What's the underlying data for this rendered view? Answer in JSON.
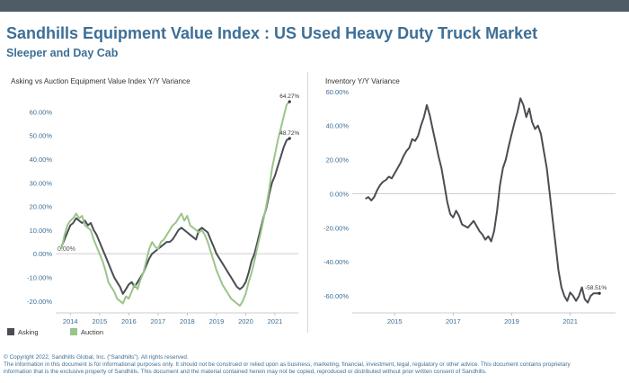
{
  "header": {
    "title": "Sandhills Equipment Value Index : US Used Heavy Duty Truck Market",
    "subtitle": "Sleeper and Day Cab"
  },
  "colors": {
    "brand_blue": "#3d6f96",
    "asking": "#4a4d53",
    "auction": "#9bc48a",
    "topbar": "#4f5b66"
  },
  "footer": {
    "line1": "© Copyright 2022, Sandhills Global, Inc. (“Sandhills”). All rights reserved.",
    "line2": "The information in this document is for informational purposes only.  It should not be construed or relied upon as business, marketing, financial, investment, legal, regulatory or other advice. This document contains proprietary",
    "line3": "information that is the exclusive property of Sandhills. This document and the material contained herein may not be copied, reproduced or distributed without prior written consent of Sandhills."
  },
  "chart_data": [
    {
      "type": "line",
      "title": "Asking vs Auction Equipment Value Index Y/Y Variance",
      "xlabel": "",
      "ylabel": "",
      "xlim": [
        2013.5,
        2021.8
      ],
      "ylim": [
        -25,
        70
      ],
      "y_ticks": [
        "-20.00%",
        "-10.00%",
        "0.00%",
        "10.00%",
        "20.00%",
        "30.00%",
        "40.00%",
        "50.00%",
        "60.00%"
      ],
      "y_tick_values": [
        -20,
        -10,
        0,
        10,
        20,
        30,
        40,
        50,
        60
      ],
      "x_ticks": [
        "2014",
        "2015",
        "2016",
        "2017",
        "2018",
        "2019",
        "2020",
        "2021"
      ],
      "x_tick_values": [
        2014,
        2015,
        2016,
        2017,
        2018,
        2019,
        2020,
        2021
      ],
      "legend": "bottom-left",
      "grid": false,
      "reference_line": {
        "y": 0,
        "label": "0.00%"
      },
      "annotations": [
        {
          "label": "64.27%",
          "x": 2021.5,
          "y": 64.27
        },
        {
          "label": "48.72%",
          "x": 2021.5,
          "y": 48.72
        }
      ],
      "series": [
        {
          "name": "Asking",
          "color": "#4a4d53",
          "x": [
            2013.7,
            2013.8,
            2013.9,
            2014.0,
            2014.1,
            2014.2,
            2014.3,
            2014.4,
            2014.5,
            2014.6,
            2014.7,
            2014.8,
            2014.9,
            2015.0,
            2015.1,
            2015.2,
            2015.3,
            2015.4,
            2015.5,
            2015.6,
            2015.7,
            2015.8,
            2015.9,
            2016.0,
            2016.1,
            2016.2,
            2016.3,
            2016.4,
            2016.5,
            2016.6,
            2016.7,
            2016.8,
            2016.9,
            2017.0,
            2017.1,
            2017.2,
            2017.3,
            2017.4,
            2017.5,
            2017.6,
            2017.7,
            2017.8,
            2017.9,
            2018.0,
            2018.1,
            2018.2,
            2018.3,
            2018.4,
            2018.5,
            2018.6,
            2018.7,
            2018.8,
            2018.9,
            2019.0,
            2019.1,
            2019.2,
            2019.3,
            2019.4,
            2019.5,
            2019.6,
            2019.7,
            2019.8,
            2019.9,
            2020.0,
            2020.1,
            2020.2,
            2020.3,
            2020.4,
            2020.5,
            2020.6,
            2020.7,
            2020.8,
            2020.9,
            2021.0,
            2021.1,
            2021.2,
            2021.3,
            2021.4,
            2021.5
          ],
          "values": [
            3,
            6,
            9,
            12,
            13,
            15,
            14,
            13,
            14,
            12,
            13,
            10,
            8,
            5,
            2,
            -1,
            -4,
            -7,
            -10,
            -12,
            -14,
            -17,
            -15,
            -13,
            -12,
            -14,
            -12,
            -10,
            -8,
            -5,
            -2,
            0,
            1,
            2,
            3,
            4,
            5,
            5,
            6,
            8,
            10,
            11,
            10,
            9,
            8,
            7,
            6,
            10,
            11,
            10,
            9,
            6,
            3,
            0,
            -2,
            -4,
            -6,
            -8,
            -10,
            -12,
            -14,
            -15,
            -14,
            -12,
            -8,
            -3,
            0,
            5,
            10,
            15,
            19,
            25,
            30,
            33,
            37,
            41,
            45,
            48,
            48.72
          ]
        },
        {
          "name": "Auction",
          "color": "#9bc48a",
          "x": [
            2013.7,
            2013.8,
            2013.9,
            2014.0,
            2014.1,
            2014.2,
            2014.3,
            2014.4,
            2014.5,
            2014.6,
            2014.7,
            2014.8,
            2014.9,
            2015.0,
            2015.1,
            2015.2,
            2015.3,
            2015.4,
            2015.5,
            2015.6,
            2015.7,
            2015.8,
            2015.9,
            2016.0,
            2016.1,
            2016.2,
            2016.3,
            2016.4,
            2016.5,
            2016.6,
            2016.7,
            2016.8,
            2016.9,
            2017.0,
            2017.1,
            2017.2,
            2017.3,
            2017.4,
            2017.5,
            2017.6,
            2017.7,
            2017.8,
            2017.9,
            2018.0,
            2018.1,
            2018.2,
            2018.3,
            2018.4,
            2018.5,
            2018.6,
            2018.7,
            2018.8,
            2018.9,
            2019.0,
            2019.1,
            2019.2,
            2019.3,
            2019.4,
            2019.5,
            2019.6,
            2019.7,
            2019.8,
            2019.9,
            2020.0,
            2020.1,
            2020.2,
            2020.3,
            2020.4,
            2020.5,
            2020.6,
            2020.7,
            2020.8,
            2020.9,
            2021.0,
            2021.1,
            2021.2,
            2021.3,
            2021.4,
            2021.5
          ],
          "values": [
            2,
            8,
            12,
            14,
            15,
            17,
            15,
            16,
            12,
            11,
            10,
            6,
            3,
            0,
            -3,
            -7,
            -12,
            -14,
            -16,
            -19,
            -20,
            -21,
            -18,
            -19,
            -16,
            -13,
            -15,
            -11,
            -8,
            -3,
            2,
            5,
            3,
            2,
            5,
            6,
            8,
            10,
            12,
            13,
            15,
            17,
            14,
            16,
            12,
            11,
            10,
            9,
            10,
            8,
            5,
            1,
            -3,
            -7,
            -10,
            -13,
            -15,
            -17,
            -19,
            -20,
            -21,
            -22,
            -20,
            -17,
            -12,
            -8,
            -3,
            3,
            8,
            14,
            20,
            27,
            36,
            42,
            48,
            53,
            58,
            63,
            64.27
          ]
        }
      ]
    },
    {
      "type": "line",
      "title": "Inventory Y/Y Variance",
      "xlabel": "",
      "ylabel": "",
      "xlim": [
        2013.55,
        2022.55
      ],
      "ylim": [
        -70,
        62
      ],
      "y_ticks": [
        "-60.00%",
        "-40.00%",
        "-20.00%",
        "0.00%",
        "20.00%",
        "40.00%",
        "60.00%"
      ],
      "y_tick_values": [
        -60,
        -40,
        -20,
        0,
        20,
        40,
        60
      ],
      "x_ticks": [
        "2015",
        "2017",
        "2019",
        "2021"
      ],
      "x_tick_values": [
        2015,
        2017,
        2019,
        2021
      ],
      "grid": false,
      "reference_line": {
        "y": 0
      },
      "annotations": [
        {
          "label": "-58.51%",
          "x": 2022.0,
          "y": -58.51
        }
      ],
      "series": [
        {
          "name": "",
          "color": "#4a4d53",
          "x": [
            2014.0,
            2014.1,
            2014.2,
            2014.3,
            2014.4,
            2014.5,
            2014.6,
            2014.7,
            2014.8,
            2014.9,
            2015.0,
            2015.1,
            2015.2,
            2015.3,
            2015.4,
            2015.5,
            2015.6,
            2015.7,
            2015.8,
            2015.9,
            2016.0,
            2016.1,
            2016.2,
            2016.3,
            2016.4,
            2016.5,
            2016.6,
            2016.7,
            2016.8,
            2016.9,
            2017.0,
            2017.1,
            2017.2,
            2017.3,
            2017.4,
            2017.5,
            2017.6,
            2017.7,
            2017.8,
            2017.9,
            2018.0,
            2018.1,
            2018.2,
            2018.3,
            2018.4,
            2018.5,
            2018.6,
            2018.7,
            2018.8,
            2018.9,
            2019.0,
            2019.1,
            2019.2,
            2019.3,
            2019.4,
            2019.5,
            2019.6,
            2019.7,
            2019.8,
            2019.9,
            2020.0,
            2020.1,
            2020.2,
            2020.3,
            2020.4,
            2020.5,
            2020.6,
            2020.7,
            2020.8,
            2020.9,
            2021.0,
            2021.1,
            2021.2,
            2021.3,
            2021.4,
            2021.5,
            2021.6,
            2021.7,
            2021.8,
            2021.9,
            2022.0
          ],
          "values": [
            -3,
            -2,
            -4,
            -2,
            2,
            5,
            7,
            8,
            10,
            9,
            12,
            15,
            18,
            22,
            25,
            27,
            32,
            31,
            34,
            40,
            45,
            52,
            46,
            38,
            30,
            22,
            15,
            5,
            -5,
            -12,
            -14,
            -10,
            -13,
            -18,
            -19,
            -20,
            -18,
            -16,
            -19,
            -22,
            -24,
            -27,
            -25,
            -28,
            -22,
            -10,
            5,
            15,
            20,
            28,
            35,
            42,
            48,
            56,
            52,
            45,
            50,
            42,
            38,
            40,
            35,
            25,
            15,
            0,
            -15,
            -30,
            -45,
            -55,
            -60,
            -63,
            -58,
            -60,
            -63,
            -60,
            -55,
            -62,
            -64,
            -60,
            -58.51,
            -58.51,
            -58.51
          ]
        }
      ]
    }
  ]
}
